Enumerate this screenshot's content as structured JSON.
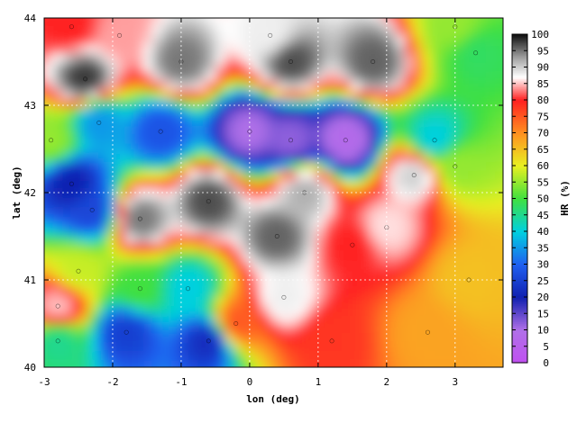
{
  "chart_data": {
    "type": "heatmap",
    "xlabel": "lon (deg)",
    "ylabel": "lat (deg)",
    "colorbar_label": "HR (%)",
    "xlim": [
      -3,
      3.7
    ],
    "ylim": [
      40,
      44
    ],
    "x_ticks": [
      -3,
      -2,
      -1,
      0,
      1,
      2,
      3
    ],
    "y_ticks": [
      40,
      41,
      42,
      43,
      44
    ],
    "colorbar_range": [
      0,
      100
    ],
    "colorbar_ticks": [
      0,
      5,
      10,
      15,
      20,
      25,
      30,
      35,
      40,
      45,
      50,
      55,
      60,
      65,
      70,
      75,
      80,
      85,
      90,
      95,
      100
    ],
    "grid": true,
    "colorscale": [
      {
        "value": 0,
        "color": "#c050f0"
      },
      {
        "value": 10,
        "color": "#b070e8"
      },
      {
        "value": 20,
        "color": "#1020b0"
      },
      {
        "value": 30,
        "color": "#2060f0"
      },
      {
        "value": 40,
        "color": "#00d0e0"
      },
      {
        "value": 50,
        "color": "#40e040"
      },
      {
        "value": 60,
        "color": "#e8f020"
      },
      {
        "value": 70,
        "color": "#ff9020"
      },
      {
        "value": 80,
        "color": "#ff2020"
      },
      {
        "value": 87,
        "color": "#ffffff"
      },
      {
        "value": 93,
        "color": "#a0a0a0"
      },
      {
        "value": 100,
        "color": "#101010"
      }
    ],
    "regions": [
      {
        "lon": 3.2,
        "lat": 41.0,
        "hr": 65
      },
      {
        "lon": 2.6,
        "lat": 40.4,
        "hr": 68
      },
      {
        "lon": 1.2,
        "lat": 40.3,
        "hr": 78
      },
      {
        "lon": 3.0,
        "lat": 42.3,
        "hr": 55
      },
      {
        "lon": 3.3,
        "lat": 43.6,
        "hr": 48
      },
      {
        "lon": 2.7,
        "lat": 42.6,
        "hr": 40
      },
      {
        "lon": 1.5,
        "lat": 41.4,
        "hr": 80
      },
      {
        "lon": 0.4,
        "lat": 41.5,
        "hr": 96
      },
      {
        "lon": -0.6,
        "lat": 41.9,
        "hr": 97
      },
      {
        "lon": -1.6,
        "lat": 41.7,
        "hr": 95
      },
      {
        "lon": 0.8,
        "lat": 42.0,
        "hr": 92
      },
      {
        "lon": 1.4,
        "lat": 42.6,
        "hr": 8
      },
      {
        "lon": 0.0,
        "lat": 42.7,
        "hr": 10
      },
      {
        "lon": 0.6,
        "lat": 42.6,
        "hr": 12
      },
      {
        "lon": -1.3,
        "lat": 42.7,
        "hr": 28
      },
      {
        "lon": -2.2,
        "lat": 42.8,
        "hr": 35
      },
      {
        "lon": -2.6,
        "lat": 42.1,
        "hr": 20
      },
      {
        "lon": -2.3,
        "lat": 41.8,
        "hr": 26
      },
      {
        "lon": -2.9,
        "lat": 42.6,
        "hr": 55
      },
      {
        "lon": -2.4,
        "lat": 43.3,
        "hr": 98
      },
      {
        "lon": -1.0,
        "lat": 43.5,
        "hr": 95
      },
      {
        "lon": 0.6,
        "lat": 43.5,
        "hr": 97
      },
      {
        "lon": 1.8,
        "lat": 43.5,
        "hr": 96
      },
      {
        "lon": -2.6,
        "lat": 43.9,
        "hr": 80
      },
      {
        "lon": -1.9,
        "lat": 43.8,
        "hr": 84
      },
      {
        "lon": 0.3,
        "lat": 43.8,
        "hr": 88
      },
      {
        "lon": 3.0,
        "lat": 43.9,
        "hr": 55
      },
      {
        "lon": -2.5,
        "lat": 41.1,
        "hr": 58
      },
      {
        "lon": -1.6,
        "lat": 40.9,
        "hr": 50
      },
      {
        "lon": -1.8,
        "lat": 40.4,
        "hr": 25
      },
      {
        "lon": -0.6,
        "lat": 40.3,
        "hr": 22
      },
      {
        "lon": -2.8,
        "lat": 40.3,
        "hr": 45
      },
      {
        "lon": -0.9,
        "lat": 40.9,
        "hr": 40
      },
      {
        "lon": -0.2,
        "lat": 40.5,
        "hr": 75
      },
      {
        "lon": 0.5,
        "lat": 40.8,
        "hr": 88
      },
      {
        "lon": -2.8,
        "lat": 40.7,
        "hr": 85
      },
      {
        "lon": 2.0,
        "lat": 41.6,
        "hr": 86
      },
      {
        "lon": 2.4,
        "lat": 42.2,
        "hr": 90
      }
    ]
  }
}
